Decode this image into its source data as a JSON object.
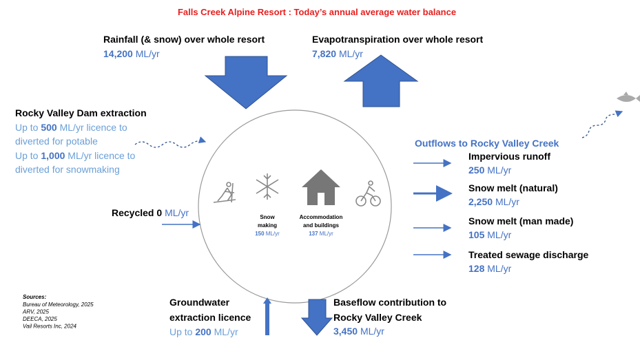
{
  "title": "Falls Creek Alpine Resort : Today’s annual average water balance",
  "rainfall": {
    "label": "Rainfall (& snow) over whole resort",
    "value": "14,200",
    "unit": "ML/yr"
  },
  "evapotranspiration": {
    "label": "Evapotranspiration over whole resort",
    "value": "7,820",
    "unit": "ML/yr"
  },
  "dam": {
    "label": "Rocky Valley Dam extraction",
    "lines": [
      {
        "prefix": "Up to",
        "value": "500",
        "suffix": "ML/yr licence to"
      },
      "diverted for potable",
      {
        "prefix": "Up to",
        "value": "1,000",
        "suffix": "ML/yr licence to"
      },
      "diverted for snowmaking"
    ]
  },
  "recycled": {
    "label": "Recycled",
    "value": "0",
    "unit": "ML/yr"
  },
  "snowmaking": {
    "label": [
      "Snow",
      "making"
    ],
    "value": "150",
    "unit": "ML/yr"
  },
  "accommodation": {
    "label": [
      "Accommodation",
      "and buildings"
    ],
    "value": "137",
    "unit": "ML/yr"
  },
  "outflows": {
    "title": "Outflows to Rocky Valley Creek",
    "items": [
      {
        "label": "Impervious runoff",
        "value": "250",
        "unit": "ML/yr"
      },
      {
        "label": "Snow melt (natural)",
        "value": "2,250",
        "unit": "ML/yr"
      },
      {
        "label": "Snow melt (man made)",
        "value": "105",
        "unit": "ML/yr"
      },
      {
        "label": "Treated sewage discharge",
        "value": "128",
        "unit": "ML/yr"
      }
    ]
  },
  "sources": {
    "title": "Sources:",
    "items": [
      "Bureau of Meteorology, 2025",
      "ARV, 2025",
      "DEECA, 2025",
      "Vail Resorts Inc, 2024"
    ]
  },
  "groundwater": {
    "label": [
      "Groundwater",
      "extraction licence"
    ],
    "prefix": "Up to",
    "value": "200",
    "unit": "ML/yr"
  },
  "baseflow": {
    "label": [
      "Baseflow contribution to",
      "Rocky Valley Creek"
    ],
    "value": "3,450",
    "unit": "ML/yr"
  }
}
